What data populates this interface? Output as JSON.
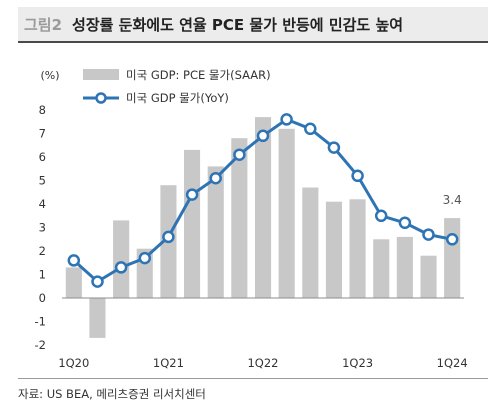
{
  "header": {
    "figure_label": "그림2",
    "title": "성장률 둔화에도 연율 PCE 물가 반등에 민감도 높여"
  },
  "footer": {
    "source": "자료: US BEA, 메리츠증권 리서치센터"
  },
  "colors": {
    "bar": "#c8c8c8",
    "line": "#2e74b5",
    "marker_fill": "#ffffff"
  },
  "chart_data": {
    "type": "bar",
    "title": "",
    "ylabel": "(%)",
    "xlabel": "",
    "ylim": [
      -2,
      8
    ],
    "yticks": [
      "-2",
      "-1",
      "0",
      "1",
      "2",
      "3",
      "4",
      "5",
      "6",
      "7",
      "8"
    ],
    "x_tick_labels": [
      "1Q20",
      "1Q21",
      "1Q22",
      "1Q23",
      "1Q24"
    ],
    "categories": [
      "1Q20",
      "2Q20",
      "3Q20",
      "4Q20",
      "1Q21",
      "2Q21",
      "3Q21",
      "4Q21",
      "1Q22",
      "2Q22",
      "3Q22",
      "4Q22",
      "1Q23",
      "2Q23",
      "3Q23",
      "4Q23",
      "1Q24"
    ],
    "legend_position": "top-left",
    "series": [
      {
        "name": "미국 GDP: PCE 물가(SAAR)",
        "type": "bar",
        "values": [
          1.3,
          -1.7,
          3.3,
          2.1,
          4.8,
          6.3,
          5.6,
          6.8,
          7.7,
          7.2,
          4.7,
          4.1,
          4.2,
          2.5,
          2.6,
          1.8,
          3.4
        ]
      },
      {
        "name": "미국 GDP 물가(YoY)",
        "type": "line",
        "values": [
          1.6,
          0.7,
          1.3,
          1.7,
          2.6,
          4.4,
          5.1,
          6.1,
          6.9,
          7.6,
          7.2,
          6.4,
          5.2,
          3.5,
          3.2,
          2.7,
          2.5
        ]
      }
    ],
    "annotations": [
      {
        "text": "3.4",
        "category_index": 16,
        "value": 3.4
      }
    ]
  }
}
